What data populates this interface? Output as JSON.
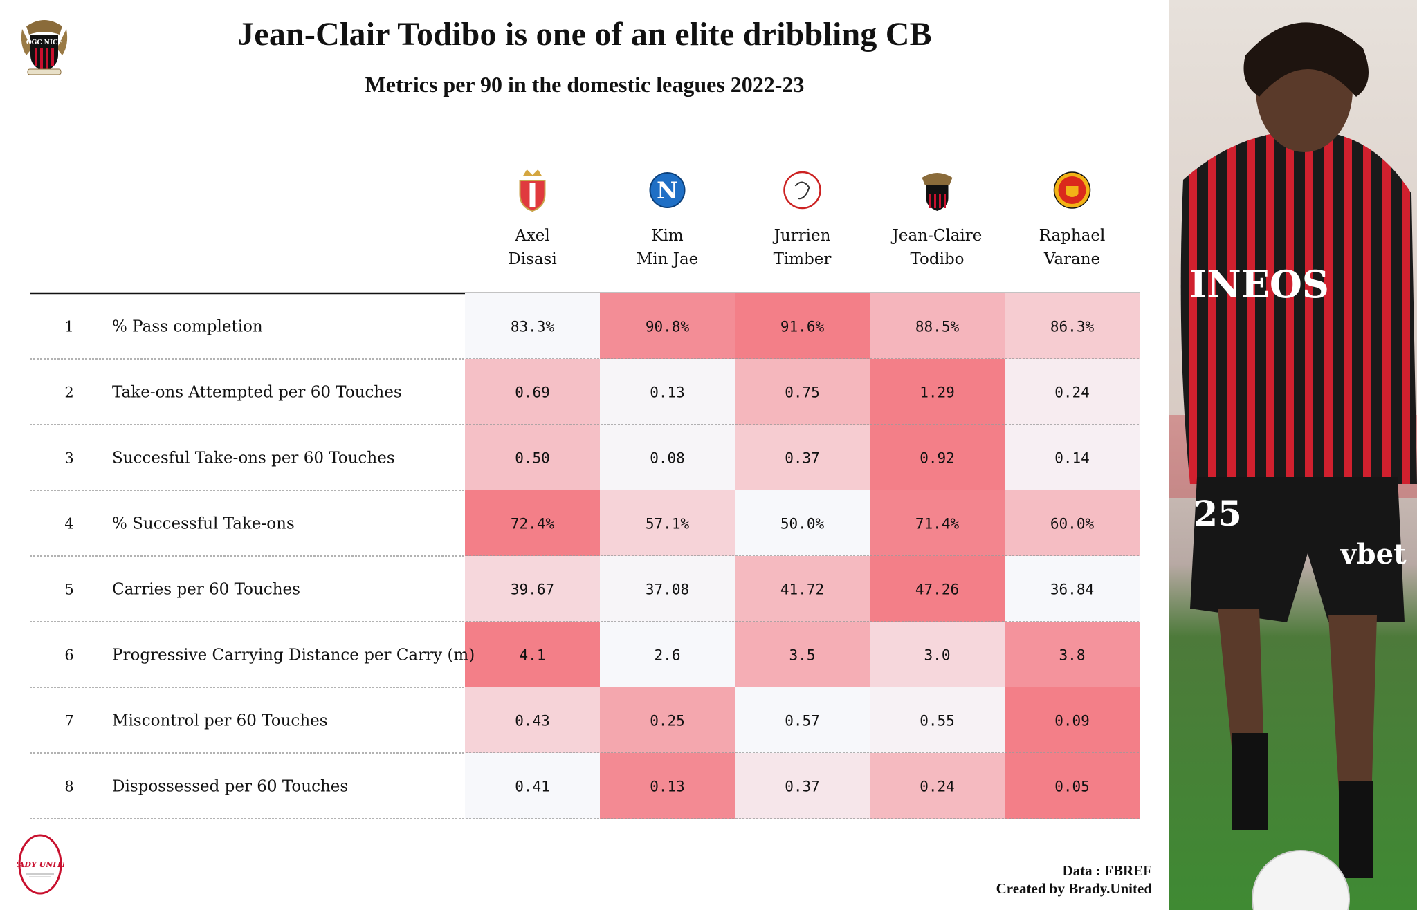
{
  "title": "Jean-Clair Todibo is one of an elite dribbling CB",
  "subtitle": "Metrics per 90 in the domestic leagues 2022-23",
  "top_logo": {
    "icon": "ogc-nice-crest-icon",
    "text": "OGC NICE"
  },
  "bottom_logo": {
    "icon": "brady-united-logo-icon",
    "text": "BRADY UNITED"
  },
  "footer": {
    "source": "Data : FBREF",
    "credit": "Created by Brady.United"
  },
  "photo": {
    "icon": "player-photo",
    "shirt_text": "INEOS",
    "shirt_number": "25",
    "sponsor": "vbet"
  },
  "chart_data": {
    "type": "table",
    "players": [
      {
        "first": "Axel",
        "last": "Disasi",
        "club_icon": "as-monaco-crest-icon"
      },
      {
        "first": "Kim",
        "last": "Min Jae",
        "club_icon": "napoli-crest-icon"
      },
      {
        "first": "Jurrien",
        "last": "Timber",
        "club_icon": "ajax-crest-icon"
      },
      {
        "first": "Jean-Claire",
        "last": "Todibo",
        "club_icon": "ogc-nice-crest-icon"
      },
      {
        "first": "Raphael",
        "last": "Varane",
        "club_icon": "manchester-united-crest-icon"
      }
    ],
    "metrics": [
      {
        "rank": "1",
        "name": "% Pass completion",
        "values": [
          "83.3%",
          "90.8%",
          "91.6%",
          "88.5%",
          "86.3%"
        ],
        "intensity": [
          0.0,
          0.72,
          0.82,
          0.45,
          0.3
        ]
      },
      {
        "rank": "2",
        "name": "Take-ons Attempted per 60 Touches",
        "values": [
          "0.69",
          "0.13",
          "0.75",
          "1.29",
          "0.24"
        ],
        "intensity": [
          0.38,
          0.02,
          0.44,
          0.82,
          0.08
        ]
      },
      {
        "rank": "3",
        "name": "Succesful Take-ons per 60 Touches",
        "values": [
          "0.50",
          "0.08",
          "0.37",
          "0.92",
          "0.14"
        ],
        "intensity": [
          0.38,
          0.02,
          0.3,
          0.82,
          0.06
        ]
      },
      {
        "rank": "4",
        "name": "% Successful Take-ons",
        "values": [
          "72.4%",
          "57.1%",
          "50.0%",
          "71.4%",
          "60.0%"
        ],
        "intensity": [
          0.82,
          0.25,
          0.0,
          0.78,
          0.4
        ]
      },
      {
        "rank": "5",
        "name": "Carries per 60 Touches",
        "values": [
          "39.67",
          "37.08",
          "41.72",
          "47.26",
          "36.84"
        ],
        "intensity": [
          0.22,
          0.02,
          0.42,
          0.82,
          0.0
        ]
      },
      {
        "rank": "6",
        "name": "Progressive Carrying Distance per Carry (m)",
        "values": [
          "4.1",
          "2.6",
          "3.5",
          "3.0",
          "3.8"
        ],
        "intensity": [
          0.82,
          0.0,
          0.5,
          0.22,
          0.68
        ]
      },
      {
        "rank": "7",
        "name": "Miscontrol per 60 Touches",
        "values": [
          "0.43",
          "0.25",
          "0.57",
          "0.55",
          "0.09"
        ],
        "intensity": [
          0.25,
          0.55,
          0.0,
          0.04,
          0.82
        ]
      },
      {
        "rank": "8",
        "name": "Dispossessed per 60 Touches",
        "values": [
          "0.41",
          "0.13",
          "0.37",
          "0.24",
          "0.05"
        ],
        "intensity": [
          0.0,
          0.74,
          0.12,
          0.42,
          0.82
        ]
      }
    ],
    "colors": {
      "low": "#f7f8fb",
      "high": "#f2646f",
      "text": "#111111"
    }
  }
}
